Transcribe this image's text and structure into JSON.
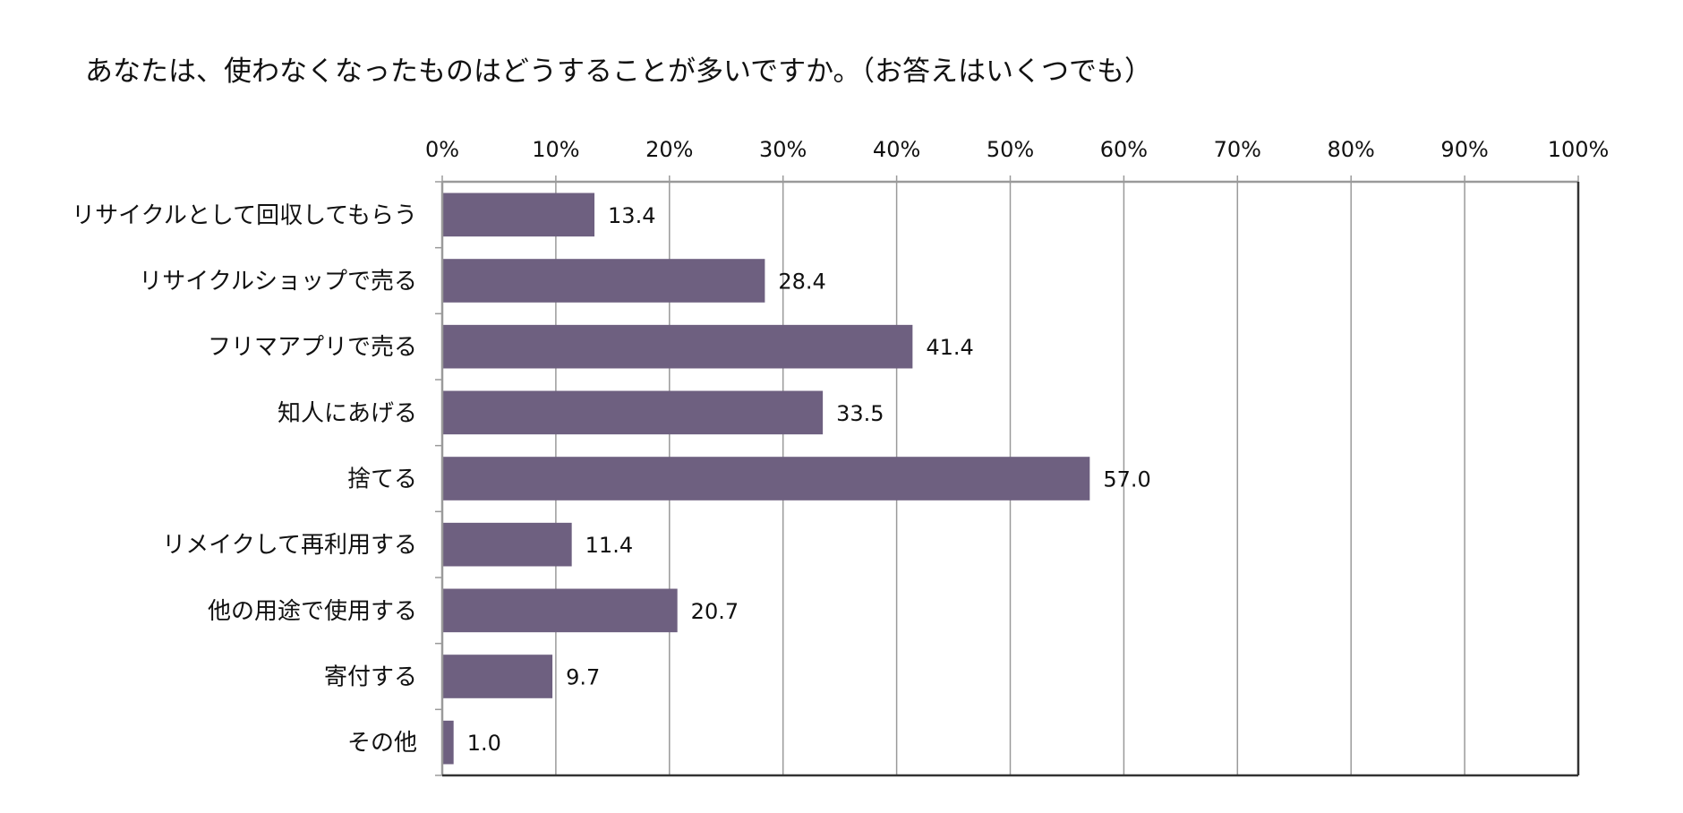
{
  "chart_data": {
    "type": "bar",
    "orientation": "horizontal",
    "title": "あなたは、使わなくなったものはどうすることが多いですか。（お答えはいくつでも）",
    "categories": [
      "リサイクルとして回収してもらう",
      "リサイクルショップで売る",
      "フリマアプリで売る",
      "知人にあげる",
      "捨てる",
      "リメイクして再利用する",
      "他の用途で使用する",
      "寄付する",
      "その他"
    ],
    "values": [
      13.4,
      28.4,
      41.4,
      33.5,
      57.0,
      11.4,
      20.7,
      9.7,
      1.0
    ],
    "value_labels": [
      "13.4",
      "28.4",
      "41.4",
      "33.5",
      "57.0",
      "11.4",
      "20.7",
      "9.7",
      "1.0"
    ],
    "x_ticks": [
      0,
      10,
      20,
      30,
      40,
      50,
      60,
      70,
      80,
      90,
      100
    ],
    "x_tick_labels": [
      "0%",
      "10%",
      "20%",
      "30%",
      "40%",
      "50%",
      "60%",
      "70%",
      "80%",
      "90%",
      "100%"
    ],
    "xlim": [
      0,
      100
    ],
    "xlabel": "",
    "ylabel": "",
    "x_axis_position": "top",
    "grid": true,
    "legend": "none",
    "colors": {
      "bar": "#6e6080",
      "grid": "#9a9a9a",
      "axis": "#333333"
    }
  }
}
